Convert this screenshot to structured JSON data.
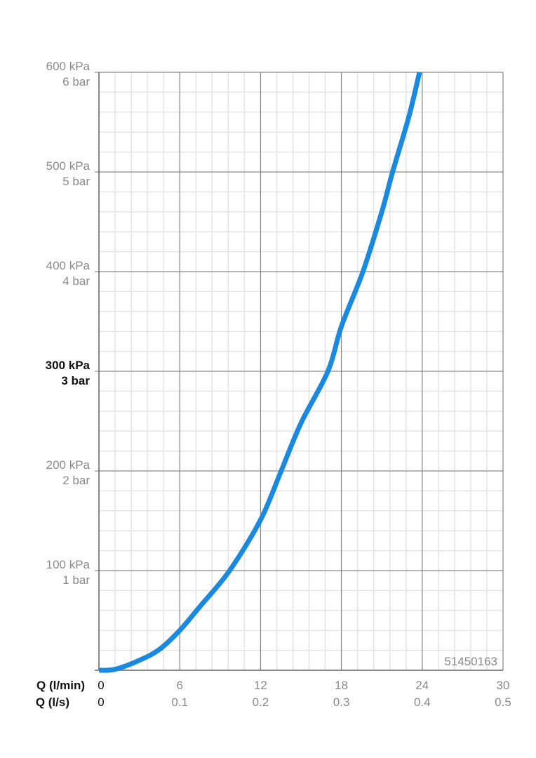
{
  "chart_data": {
    "type": "line",
    "code_label": "51450163",
    "x_axis": {
      "primary_label": "Q (l/min)",
      "secondary_label": "Q (l/s)",
      "range": [
        0,
        30
      ],
      "ticks": [
        0,
        6,
        12,
        18,
        24,
        30
      ],
      "tick_labels_primary": [
        "0",
        "6",
        "12",
        "18",
        "24",
        "30"
      ],
      "tick_labels_secondary": [
        "0",
        "0.1",
        "0.2",
        "0.3",
        "0.4",
        "0.5"
      ],
      "minor_step": 1.2
    },
    "y_axis": {
      "unit": "kPa",
      "range": [
        0,
        600
      ],
      "ticks": [
        100,
        200,
        300,
        400,
        500,
        600
      ],
      "tick_labels_primary": [
        "100 kPa",
        "200 kPa",
        "300 kPa",
        "400 kPa",
        "500 kPa",
        "600 kPa"
      ],
      "tick_labels_secondary": [
        "1 bar",
        "2 bar",
        "3 bar",
        "4 bar",
        "5 bar",
        "6 bar"
      ],
      "highlighted_tick": 300,
      "minor_step": 20
    },
    "grid": true,
    "series": [
      {
        "color": "#1a8ae0",
        "x": [
          0,
          1.2,
          3,
          4.5,
          6,
          7.5,
          9.7,
          12,
          13.5,
          15,
          17,
          18,
          19.6,
          21,
          21.8,
          23,
          23.8
        ],
        "y": [
          0,
          1,
          10,
          21,
          40,
          64,
          100,
          151,
          199,
          248,
          300,
          345,
          400,
          460,
          500,
          555,
          600
        ]
      }
    ]
  }
}
